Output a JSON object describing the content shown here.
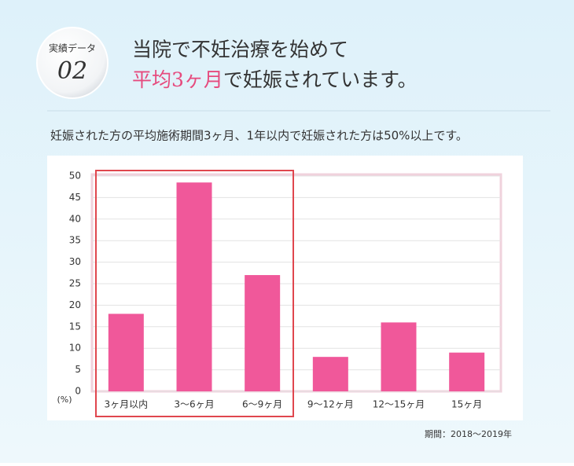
{
  "header": {
    "badge_label": "実績データ",
    "badge_number": "02",
    "title_line1": "当院で不妊治療を始めて",
    "title_highlight": "平均3ヶ月",
    "title_rest": "で妊娠されています。"
  },
  "subtitle": "妊娠された方の平均施術期間3ヶ月、1年以内で妊娠された方は50%以上です。",
  "chart_data": {
    "type": "bar",
    "y_unit": "(%)",
    "categories": [
      "3ヶ月以内",
      "3〜6ヶ月",
      "6〜9ヶ月",
      "9〜12ヶ月",
      "12〜15ヶ月",
      "15ヶ月"
    ],
    "values": [
      18,
      48.5,
      27,
      8,
      16,
      9
    ],
    "color": "#f0589a",
    "ylim": [
      0,
      50
    ],
    "yticks": [
      0,
      5,
      10,
      15,
      20,
      25,
      30,
      35,
      40,
      45,
      50
    ],
    "grid": true,
    "note": "期間：2018〜2019年"
  }
}
